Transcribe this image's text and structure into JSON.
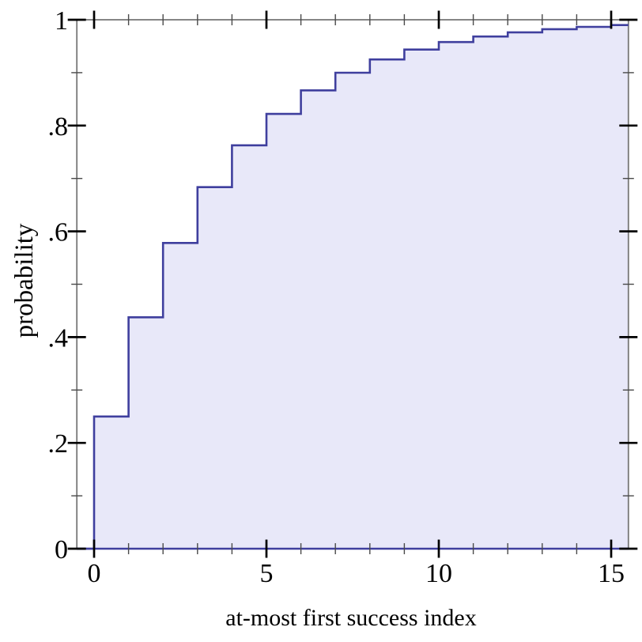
{
  "chart_data": {
    "type": "area",
    "subtype": "step-cdf",
    "title": "",
    "xlabel": "at-most first success index",
    "ylabel": "probability",
    "xlim": [
      -0.5,
      15.5
    ],
    "ylim": [
      0,
      1
    ],
    "grid": false,
    "legend": "none",
    "x": [
      0,
      1,
      2,
      3,
      4,
      5,
      6,
      7,
      8,
      9,
      10,
      11,
      12,
      13,
      14,
      15
    ],
    "y": [
      0.25,
      0.4375,
      0.5781,
      0.6836,
      0.7627,
      0.822,
      0.8665,
      0.8999,
      0.9249,
      0.9437,
      0.9578,
      0.9683,
      0.9762,
      0.9822,
      0.9866,
      0.99
    ],
    "x_major_ticks": [
      0,
      5,
      10,
      15
    ],
    "x_major_labels": [
      "0",
      "5",
      "10",
      "15"
    ],
    "x_minor_ticks": [
      1,
      2,
      3,
      4,
      6,
      7,
      8,
      9,
      11,
      12,
      13,
      14
    ],
    "y_major_ticks": [
      0,
      0.2,
      0.4,
      0.6,
      0.8,
      1
    ],
    "y_major_labels": [
      "0",
      ".2",
      ".4",
      ".6",
      ".8",
      "1"
    ],
    "y_minor_ticks": [
      0.1,
      0.3,
      0.5,
      0.7,
      0.9
    ],
    "colors": {
      "line": "#3f3f9e",
      "fill": "#e8e8f9",
      "frame": "#787878",
      "major_tick": "#000000",
      "minor_tick": "#4a4a4a",
      "text": "#000000",
      "background": "#ffffff"
    }
  }
}
